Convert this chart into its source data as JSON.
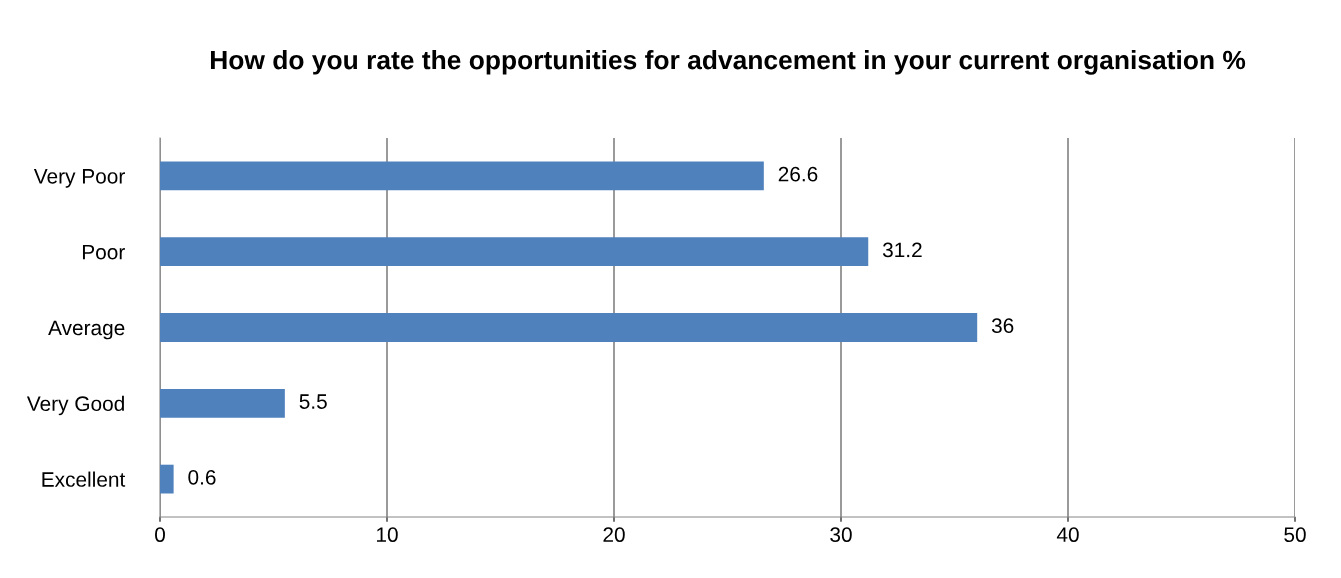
{
  "chart_data": {
    "type": "bar",
    "orientation": "horizontal",
    "title": "How do you rate the opportunities for advancement in your current organisation %",
    "categories": [
      "Very Poor",
      "Poor",
      "Average",
      "Very Good",
      "Excellent"
    ],
    "values": [
      26.6,
      31.2,
      36,
      5.5,
      0.6
    ],
    "color": "#4f81bd",
    "xlim": [
      0,
      50
    ],
    "xticks": [
      0,
      10,
      20,
      30,
      40,
      50
    ],
    "grid": "x",
    "data_labels": true,
    "legend": false
  }
}
